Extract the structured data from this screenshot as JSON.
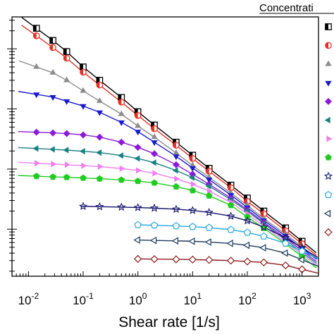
{
  "chart_data": {
    "type": "scatter",
    "title": "",
    "xlabel": "Shear rate [1/s]",
    "ylabel": "",
    "xscale": "log",
    "yscale": "log",
    "xlim": [
      0.005,
      2000
    ],
    "xticks": [
      0.01,
      0.1,
      1,
      10,
      100,
      1000
    ],
    "xtick_labels": [
      {
        "base": "10",
        "exp": "-2"
      },
      {
        "base": "10",
        "exp": "-1"
      },
      {
        "base": "10",
        "exp": "0"
      },
      {
        "base": "10",
        "exp": "1"
      },
      {
        "base": "10",
        "exp": "2"
      },
      {
        "base": "10",
        "exp": "3"
      }
    ],
    "legend_title": "Concentrati",
    "legend_position": "right",
    "grid": false,
    "fit_lines": true,
    "series": [
      {
        "marker": "half-square",
        "color": "#000000",
        "x": [
          0.014,
          0.028,
          0.05,
          0.1,
          0.2,
          0.5,
          1,
          2,
          5,
          10,
          20,
          50,
          100,
          200,
          500,
          1000
        ],
        "y": [
          2.2,
          1.38,
          0.9,
          0.5,
          0.3,
          0.155,
          0.09,
          0.054,
          0.028,
          0.017,
          0.0103,
          0.0054,
          0.0033,
          0.002,
          0.00105,
          0.00063
        ]
      },
      {
        "marker": "half-circle",
        "color": "#e53024",
        "x": [
          0.014,
          0.028,
          0.05,
          0.1,
          0.2,
          0.5,
          1,
          2,
          5,
          10,
          20,
          50,
          100,
          200,
          500,
          1000
        ],
        "y": [
          1.65,
          1.05,
          0.7,
          0.41,
          0.25,
          0.13,
          0.078,
          0.047,
          0.025,
          0.015,
          0.0092,
          0.0049,
          0.0029,
          0.0018,
          0.00094,
          0.00057
        ]
      },
      {
        "marker": "triangle-up",
        "color": "#8c8c8c",
        "x": [
          0.014,
          0.028,
          0.05,
          0.1,
          0.2,
          0.5,
          1,
          2,
          5,
          10,
          20,
          50,
          100,
          200,
          500,
          1000
        ],
        "y": [
          0.5,
          0.4,
          0.3,
          0.2,
          0.135,
          0.082,
          0.052,
          0.034,
          0.0185,
          0.0115,
          0.0073,
          0.004,
          0.0025,
          0.0015,
          0.00083,
          0.00051
        ]
      },
      {
        "marker": "triangle-down",
        "color": "#1a1acc",
        "x": [
          0.014,
          0.028,
          0.05,
          0.1,
          0.2,
          0.5,
          1,
          2,
          5,
          10,
          20,
          50,
          100,
          200,
          500,
          1000
        ],
        "y": [
          0.175,
          0.158,
          0.135,
          0.112,
          0.088,
          0.06,
          0.042,
          0.028,
          0.0163,
          0.0104,
          0.0067,
          0.0037,
          0.0023,
          0.0014,
          0.00077,
          0.00048
        ]
      },
      {
        "marker": "diamond",
        "color": "#8b1ad6",
        "x": [
          0.014,
          0.028,
          0.05,
          0.1,
          0.2,
          0.5,
          1,
          2,
          5,
          10,
          20,
          50,
          100,
          200,
          500,
          1000
        ],
        "y": [
          0.041,
          0.04,
          0.039,
          0.037,
          0.034,
          0.028,
          0.023,
          0.018,
          0.0118,
          0.0082,
          0.0056,
          0.0033,
          0.0021,
          0.0013,
          0.00071,
          0.00044
        ]
      },
      {
        "marker": "triangle-left",
        "color": "#1a8080",
        "x": [
          0.014,
          0.028,
          0.05,
          0.1,
          0.2,
          0.5,
          1,
          2,
          5,
          10,
          20,
          50,
          100,
          200,
          500,
          1000
        ],
        "y": [
          0.022,
          0.0213,
          0.0207,
          0.0198,
          0.0188,
          0.0168,
          0.015,
          0.0128,
          0.0095,
          0.0072,
          0.0052,
          0.0031,
          0.002,
          0.00124,
          0.00066,
          0.00041
        ]
      },
      {
        "marker": "triangle-right",
        "color": "#f07ef0",
        "x": [
          0.014,
          0.028,
          0.05,
          0.1,
          0.2,
          0.5,
          1,
          2,
          5,
          10,
          20,
          50,
          100,
          200,
          500,
          1000
        ],
        "y": [
          0.0125,
          0.0121,
          0.0118,
          0.0114,
          0.011,
          0.0102,
          0.0095,
          0.0085,
          0.0069,
          0.0056,
          0.0043,
          0.0028,
          0.0018,
          0.00113,
          0.00061,
          0.00038
        ]
      },
      {
        "marker": "pentagon",
        "color": "#1fcc1f",
        "x": [
          0.014,
          0.028,
          0.05,
          0.1,
          0.2,
          0.5,
          1,
          2,
          5,
          10,
          20,
          50,
          100,
          200,
          500,
          1000
        ],
        "y": [
          0.0076,
          0.0074,
          0.0073,
          0.0071,
          0.0069,
          0.0066,
          0.0063,
          0.0059,
          0.0051,
          0.0044,
          0.0036,
          0.0025,
          0.0016,
          0.00104,
          0.00057,
          0.00035
        ]
      },
      {
        "marker": "star-open",
        "color": "#14146e",
        "x": [
          0.1,
          0.2,
          0.5,
          1,
          2,
          5,
          10,
          20,
          50,
          100,
          200,
          500,
          1000
        ],
        "y": [
          0.0024,
          0.00237,
          0.00233,
          0.00229,
          0.00224,
          0.00215,
          0.00205,
          0.0019,
          0.00165,
          0.00138,
          0.00108,
          0.00072,
          0.00049
        ]
      },
      {
        "marker": "pentagon-open",
        "color": "#2aa8e0",
        "x": [
          1,
          2,
          5,
          10,
          20,
          50,
          100,
          200,
          500,
          1000
        ],
        "y": [
          0.00118,
          0.00116,
          0.00113,
          0.0011,
          0.00106,
          0.00098,
          0.00088,
          0.00076,
          0.00058,
          0.00043
        ]
      },
      {
        "marker": "triangle-left-open",
        "color": "#1e3a5a",
        "x": [
          1,
          2,
          5,
          10,
          20,
          50,
          100,
          200,
          500,
          1000
        ],
        "y": [
          0.00066,
          0.00065,
          0.00064,
          0.00063,
          0.00061,
          0.00058,
          0.00054,
          0.00049,
          0.0004,
          0.00031
        ]
      },
      {
        "marker": "diamond-open",
        "color": "#8b1a1a",
        "x": [
          1,
          2,
          5,
          10,
          20,
          50,
          100,
          200,
          500,
          1000
        ],
        "y": [
          0.00032,
          0.000318,
          0.000315,
          0.000312,
          0.000308,
          0.0003,
          0.00029,
          0.00028,
          0.00025,
          0.000215
        ]
      }
    ]
  }
}
